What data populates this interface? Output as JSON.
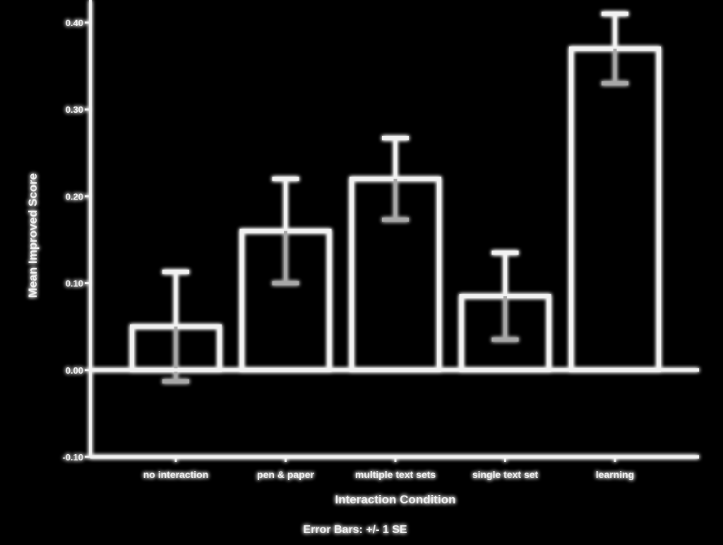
{
  "colors": {
    "background": "#000000",
    "foreground": "#f2f2f2",
    "error_bar": "#a8a8a8"
  },
  "chart_data": {
    "type": "bar",
    "title": "",
    "xlabel": "Interaction Condition",
    "ylabel": "Mean Improved Score",
    "footnote": "Error Bars: +/- 1 SE",
    "categories": [
      "no interaction",
      "pen & paper",
      "multiple text sets",
      "single text set",
      "learning"
    ],
    "values": [
      0.05,
      0.16,
      0.22,
      0.085,
      0.37
    ],
    "error": [
      0.063,
      0.06,
      0.047,
      0.05,
      0.04
    ],
    "ylim": [
      -0.1,
      0.4
    ],
    "yticks": [
      -0.1,
      0.0,
      0.1,
      0.2,
      0.3,
      0.4
    ],
    "ytick_labels": [
      "-0.10",
      "0.00",
      "0.10",
      "0.20",
      "0.30",
      "0.40"
    ],
    "grid": false,
    "legend": "none"
  }
}
